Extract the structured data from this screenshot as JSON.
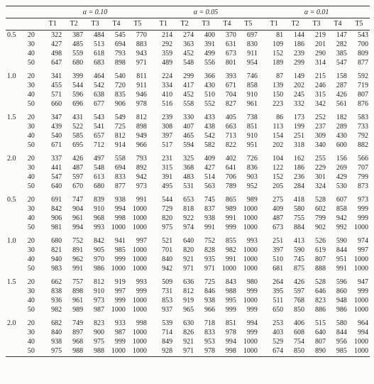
{
  "alphas": [
    "α = 0.10",
    "α = 0.05",
    "α = 0.01"
  ],
  "tcols": [
    "T1",
    "T2",
    "T3",
    "T4",
    "T5"
  ],
  "colors": {
    "text": "#222222",
    "rule": "#333333",
    "bg": "#fcfcfa"
  },
  "font_size_pt": 8,
  "blocks": [
    {
      "label": "0.5",
      "rows": [
        {
          "n": 20,
          "a10": [
            322,
            387,
            484,
            545,
            770
          ],
          "a05": [
            214,
            274,
            400,
            370,
            697
          ],
          "a01": [
            81,
            144,
            219,
            147,
            543
          ]
        },
        {
          "n": 30,
          "a10": [
            427,
            485,
            513,
            694,
            883
          ],
          "a05": [
            292,
            363,
            391,
            631,
            830
          ],
          "a01": [
            109,
            186,
            201,
            282,
            700
          ]
        },
        {
          "n": 40,
          "a10": [
            498,
            559,
            618,
            793,
            943
          ],
          "a05": [
            359,
            452,
            499,
            673,
            911
          ],
          "a01": [
            152,
            239,
            290,
            385,
            809
          ]
        },
        {
          "n": 50,
          "a10": [
            647,
            680,
            683,
            898,
            971
          ],
          "a05": [
            489,
            548,
            556,
            801,
            954
          ],
          "a01": [
            189,
            299,
            314,
            547,
            877
          ]
        }
      ]
    },
    {
      "label": "1.0",
      "rows": [
        {
          "n": 20,
          "a10": [
            341,
            399,
            464,
            540,
            811
          ],
          "a05": [
            224,
            299,
            366,
            393,
            746
          ],
          "a01": [
            87,
            149,
            215,
            158,
            592
          ]
        },
        {
          "n": 30,
          "a10": [
            455,
            544,
            542,
            720,
            911
          ],
          "a05": [
            334,
            417,
            430,
            671,
            858
          ],
          "a01": [
            139,
            202,
            246,
            287,
            719
          ]
        },
        {
          "n": 40,
          "a10": [
            571,
            596,
            638,
            835,
            946
          ],
          "a05": [
            410,
            452,
            510,
            704,
            910
          ],
          "a01": [
            150,
            245,
            315,
            426,
            807
          ]
        },
        {
          "n": 50,
          "a10": [
            660,
            696,
            677,
            906,
            978
          ],
          "a05": [
            516,
            558,
            552,
            827,
            961
          ],
          "a01": [
            223,
            332,
            342,
            561,
            876
          ]
        }
      ]
    },
    {
      "label": "1.5",
      "rows": [
        {
          "n": 20,
          "a10": [
            347,
            431,
            543,
            549,
            812
          ],
          "a05": [
            239,
            330,
            433,
            405,
            738
          ],
          "a01": [
            86,
            173,
            252,
            182,
            583
          ]
        },
        {
          "n": 30,
          "a10": [
            439,
            522,
            541,
            725,
            898
          ],
          "a05": [
            308,
            407,
            438,
            663,
            851
          ],
          "a01": [
            113,
            199,
            237,
            289,
            733
          ]
        },
        {
          "n": 40,
          "a10": [
            540,
            585,
            657,
            812,
            949
          ],
          "a05": [
            397,
            465,
            542,
            713,
            910
          ],
          "a01": [
            154,
            251,
            309,
            430,
            792
          ]
        },
        {
          "n": 50,
          "a10": [
            671,
            695,
            712,
            914,
            966
          ],
          "a05": [
            517,
            594,
            582,
            822,
            951
          ],
          "a01": [
            202,
            318,
            340,
            600,
            882
          ]
        }
      ]
    },
    {
      "label": "2.0",
      "rows": [
        {
          "n": 20,
          "a10": [
            337,
            426,
            497,
            558,
            793
          ],
          "a05": [
            231,
            325,
            409,
            402,
            726
          ],
          "a01": [
            104,
            162,
            255,
            156,
            566
          ]
        },
        {
          "n": 30,
          "a10": [
            441,
            487,
            548,
            694,
            892
          ],
          "a05": [
            315,
            368,
            427,
            641,
            836
          ],
          "a01": [
            122,
            186,
            229,
            269,
            707
          ]
        },
        {
          "n": 40,
          "a10": [
            547,
            597,
            613,
            833,
            942
          ],
          "a05": [
            391,
            483,
            514,
            706,
            903
          ],
          "a01": [
            152,
            236,
            301,
            429,
            799
          ]
        },
        {
          "n": 50,
          "a10": [
            640,
            670,
            680,
            877,
            973
          ],
          "a05": [
            495,
            531,
            563,
            789,
            952
          ],
          "a01": [
            205,
            284,
            324,
            530,
            873
          ]
        }
      ]
    },
    {
      "label": "0.5",
      "rows": [
        {
          "n": 20,
          "a10": [
            691,
            747,
            839,
            938,
            991
          ],
          "a05": [
            544,
            653,
            745,
            865,
            989
          ],
          "a01": [
            275,
            418,
            528,
            607,
            973
          ]
        },
        {
          "n": 30,
          "a10": [
            842,
            904,
            910,
            994,
            1000
          ],
          "a05": [
            729,
            818,
            837,
            989,
            1000
          ],
          "a01": [
            409,
            580,
            602,
            858,
            999
          ]
        },
        {
          "n": 40,
          "a10": [
            906,
            961,
            968,
            998,
            1000
          ],
          "a05": [
            820,
            922,
            938,
            991,
            1000
          ],
          "a01": [
            487,
            755,
            799,
            942,
            999
          ]
        },
        {
          "n": 50,
          "a10": [
            981,
            994,
            993,
            1000,
            1000
          ],
          "a05": [
            975,
            974,
            991,
            999,
            1000
          ],
          "a01": [
            673,
            884,
            902,
            992,
            1000
          ]
        }
      ]
    },
    {
      "label": "1.0",
      "rows": [
        {
          "n": 20,
          "a10": [
            680,
            752,
            842,
            941,
            997
          ],
          "a05": [
            521,
            640,
            752,
            855,
            993
          ],
          "a01": [
            251,
            413,
            526,
            590,
            974
          ]
        },
        {
          "n": 30,
          "a10": [
            821,
            891,
            905,
            985,
            1000
          ],
          "a05": [
            701,
            820,
            828,
            982,
            1000
          ],
          "a01": [
            397,
            590,
            619,
            844,
            997
          ]
        },
        {
          "n": 40,
          "a10": [
            940,
            962,
            970,
            999,
            1000
          ],
          "a05": [
            840,
            921,
            935,
            991,
            1000
          ],
          "a01": [
            510,
            745,
            807,
            951,
            1000
          ]
        },
        {
          "n": 50,
          "a10": [
            983,
            991,
            986,
            1000,
            1000
          ],
          "a05": [
            942,
            971,
            971,
            1000,
            1000
          ],
          "a01": [
            681,
            875,
            888,
            991,
            1000
          ]
        }
      ]
    },
    {
      "label": "1.5",
      "rows": [
        {
          "n": 20,
          "a10": [
            662,
            757,
            812,
            919,
            993
          ],
          "a05": [
            509,
            636,
            725,
            843,
            980
          ],
          "a01": [
            264,
            426,
            528,
            596,
            947
          ]
        },
        {
          "n": 30,
          "a10": [
            838,
            898,
            910,
            997,
            999
          ],
          "a05": [
            731,
            812,
            846,
            988,
            999
          ],
          "a01": [
            395,
            597,
            646,
            860,
            999
          ]
        },
        {
          "n": 40,
          "a10": [
            936,
            961,
            973,
            999,
            1000
          ],
          "a05": [
            853,
            919,
            938,
            995,
            1000
          ],
          "a01": [
            511,
            768,
            823,
            948,
            1000
          ]
        },
        {
          "n": 50,
          "a10": [
            982,
            989,
            987,
            1000,
            1000
          ],
          "a05": [
            937,
            965,
            966,
            999,
            999
          ],
          "a01": [
            650,
            850,
            886,
            986,
            1000
          ]
        }
      ]
    },
    {
      "label": "2.0",
      "rows": [
        {
          "n": 20,
          "a10": [
            682,
            749,
            823,
            933,
            998
          ],
          "a05": [
            539,
            630,
            718,
            851,
            994
          ],
          "a01": [
            253,
            406,
            515,
            580,
            964
          ]
        },
        {
          "n": 30,
          "a10": [
            840,
            897,
            900,
            987,
            1000
          ],
          "a05": [
            714,
            826,
            833,
            978,
            999
          ],
          "a01": [
            403,
            608,
            640,
            844,
            994
          ]
        },
        {
          "n": 40,
          "a10": [
            938,
            968,
            975,
            999,
            1000
          ],
          "a05": [
            849,
            921,
            953,
            994,
            1000
          ],
          "a01": [
            529,
            754,
            807,
            956,
            1000
          ]
        },
        {
          "n": 50,
          "a10": [
            975,
            988,
            988,
            1000,
            1000
          ],
          "a05": [
            928,
            971,
            978,
            998,
            1000
          ],
          "a01": [
            674,
            850,
            890,
            985,
            1000
          ]
        }
      ]
    }
  ]
}
